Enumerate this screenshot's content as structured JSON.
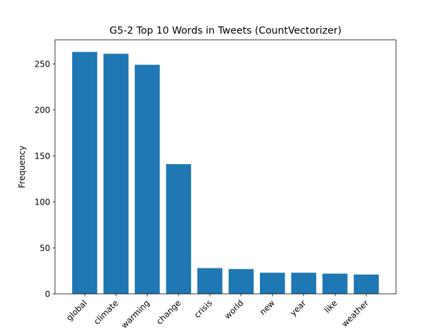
{
  "chart_data": {
    "type": "bar",
    "title": "G5-2 Top 10 Words in Tweets (CountVectorizer)",
    "xlabel": "",
    "ylabel": "Frequency",
    "categories": [
      "global",
      "climate",
      "warming",
      "change",
      "crisis",
      "world",
      "new",
      "year",
      "like",
      "weather"
    ],
    "values": [
      263,
      261,
      249,
      141,
      28,
      27,
      23,
      23,
      22,
      21
    ],
    "ylim": [
      0,
      276.15
    ],
    "yticks": [
      0,
      50,
      100,
      150,
      200,
      250
    ],
    "bar_color": "#1f77b4",
    "grid": false,
    "xtick_rotation": 45
  }
}
